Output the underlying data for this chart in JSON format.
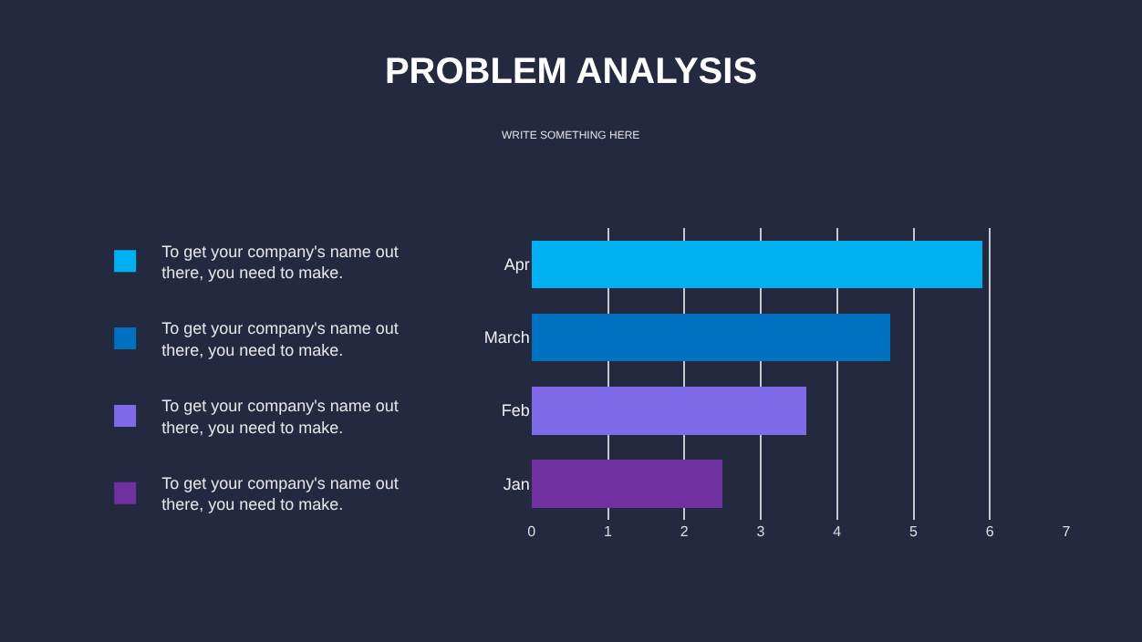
{
  "chart_data": {
    "type": "bar",
    "orientation": "horizontal",
    "stacked": true,
    "title": "PROBLEM ANALYSIS",
    "subtitle": "WRITE SOMETHING HERE",
    "categories": [
      "Apr",
      "March",
      "Feb",
      "Jan"
    ],
    "series": [
      {
        "name": "To get your company's name out there, you need to make.",
        "color": "#00b0f0",
        "values": [
          5.9,
          null,
          null,
          null
        ]
      },
      {
        "name": "To get your company's name out there, you need to make.",
        "color": "#0070c0",
        "values": [
          null,
          4.7,
          null,
          null
        ]
      },
      {
        "name": "To get your company's name out there, you need to make.",
        "color": "#7f6ae8",
        "values": [
          null,
          null,
          3.6,
          null
        ]
      },
      {
        "name": "To get your company's name out there, you need to make.",
        "color": "#7030a0",
        "values": [
          null,
          null,
          null,
          2.5
        ]
      }
    ],
    "xlim": [
      0,
      7
    ],
    "xticks": [
      0,
      1,
      2,
      3,
      4,
      5,
      6,
      7
    ],
    "grid": "x",
    "legend": "left"
  }
}
